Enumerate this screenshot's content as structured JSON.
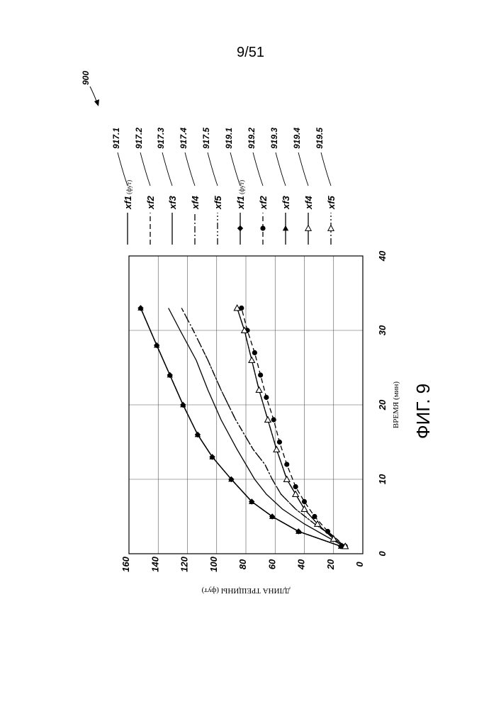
{
  "page_number": "9/51",
  "figure_ref": "900",
  "figure_label": "ФИГ. 9",
  "colors": {
    "ink": "#000000",
    "grid": "#555555",
    "background": "#ffffff"
  },
  "chart_data": {
    "type": "line",
    "orientation": "rotated 90° counter-clockwise on the page",
    "xlabel": "ВРЕМЯ (мин)",
    "ylabel": "ДЛИНА ТРЕЩИНЫ (фут)",
    "xlim": [
      0,
      40
    ],
    "ylim": [
      0,
      160
    ],
    "x_ticks": [
      0,
      10,
      20,
      30,
      40
    ],
    "y_ticks": [
      0,
      20,
      40,
      60,
      80,
      100,
      120,
      140,
      160
    ],
    "x_tick_labels": [
      "0",
      "10",
      "20",
      "30",
      "40"
    ],
    "y_tick_labels": [
      "0",
      "20",
      "40",
      "60",
      "80",
      "100",
      "120",
      "140",
      "160"
    ],
    "grid": true,
    "legend_position": "right",
    "series": [
      {
        "name": "xf1",
        "unit": "(фут)",
        "ref": "917.1",
        "style": "solid",
        "marker": "none",
        "x": [
          1,
          3,
          5,
          7,
          10,
          13,
          16,
          20,
          24,
          28,
          33
        ],
        "y": [
          15,
          44,
          62,
          76,
          90,
          103,
          113,
          123,
          132,
          141,
          152
        ]
      },
      {
        "name": "xf2",
        "unit": "",
        "ref": "917.2",
        "style": "dashed",
        "marker": "none",
        "x": [
          1,
          3,
          5,
          7,
          10,
          13,
          16,
          20,
          24,
          28,
          33
        ],
        "y": [
          15,
          44,
          62,
          76,
          90,
          103,
          113,
          123,
          132,
          141,
          152
        ]
      },
      {
        "name": "xf3",
        "unit": "",
        "ref": "917.3",
        "style": "solid",
        "marker": "none",
        "x": [
          1,
          2,
          4,
          6,
          8,
          10,
          14,
          18,
          22,
          26,
          30,
          33
        ],
        "y": [
          13,
          22,
          40,
          55,
          66,
          74,
          86,
          97,
          106,
          114,
          125,
          133
        ]
      },
      {
        "name": "xf4",
        "unit": "",
        "ref": "917.4",
        "style": "dashdot",
        "marker": "none",
        "x": [
          1,
          2,
          4,
          6,
          8,
          10,
          12,
          14,
          18,
          22,
          26,
          30,
          33
        ],
        "y": [
          13,
          18,
          33,
          46,
          56,
          62,
          67,
          75,
          87,
          97,
          106,
          116,
          124
        ]
      },
      {
        "name": "xf5",
        "unit": "",
        "ref": "917.5",
        "style": "dashdotdot",
        "marker": "none",
        "x": [
          1,
          2,
          4,
          6,
          8,
          10,
          12,
          14,
          18,
          22,
          26,
          30,
          33
        ],
        "y": [
          13,
          18,
          33,
          46,
          56,
          62,
          67,
          75,
          87,
          97,
          106,
          116,
          124
        ]
      },
      {
        "name": "xf1",
        "unit": "(фут)",
        "ref": "919.1",
        "style": "solid",
        "marker": "diamond-filled",
        "x": [
          1,
          3,
          5,
          7,
          10,
          13,
          16,
          20,
          24,
          28,
          33
        ],
        "y": [
          15,
          44,
          62,
          76,
          90,
          103,
          113,
          123,
          132,
          141,
          152
        ]
      },
      {
        "name": "xf2",
        "unit": "",
        "ref": "919.2",
        "style": "dashed",
        "marker": "circle-filled",
        "x": [
          1,
          3,
          5,
          7,
          9,
          12,
          15,
          18,
          21,
          24,
          27,
          30,
          33
        ],
        "y": [
          12,
          24,
          33,
          40,
          46,
          52,
          57,
          61,
          66,
          70,
          74,
          79,
          83
        ]
      },
      {
        "name": "xf3",
        "unit": "",
        "ref": "919.3",
        "style": "solid",
        "marker": "triangle-filled",
        "x": [
          1,
          3,
          5,
          7,
          10,
          13,
          16,
          20,
          24,
          28,
          33
        ],
        "y": [
          15,
          44,
          62,
          76,
          90,
          103,
          113,
          123,
          132,
          141,
          152
        ]
      },
      {
        "name": "xf4",
        "unit": "",
        "ref": "919.4",
        "style": "solid",
        "marker": "triangle-open",
        "x": [
          1,
          2,
          4,
          6,
          8,
          10,
          14,
          18,
          22,
          26,
          30,
          33
        ],
        "y": [
          12,
          20,
          31,
          40,
          46,
          52,
          59,
          65,
          71,
          76,
          81,
          86
        ]
      },
      {
        "name": "xf5",
        "unit": "",
        "ref": "919.5",
        "style": "dashdotdot",
        "marker": "triangle-open",
        "x": [
          1,
          2,
          4,
          6,
          8,
          10,
          14,
          18,
          22,
          26,
          30,
          33
        ],
        "y": [
          12,
          20,
          31,
          40,
          46,
          52,
          59,
          65,
          71,
          76,
          81,
          86
        ]
      }
    ]
  }
}
